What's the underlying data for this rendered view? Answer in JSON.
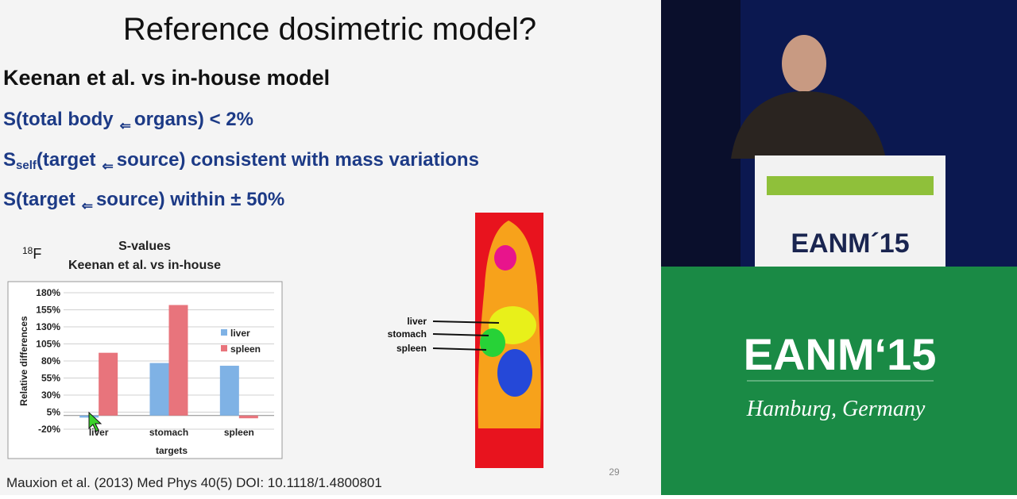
{
  "slide": {
    "title": "Reference dosimetric model?",
    "heading": "Keenan et al. vs in-house model",
    "bullets": [
      [
        "S(total body",
        "⇐",
        "organs) < 2%"
      ],
      [
        "S",
        "self",
        "(target",
        "⇐",
        "source) consistent with mass variations"
      ],
      [
        "S(target",
        "⇐",
        "source) within ± 50%"
      ]
    ],
    "isotope": [
      "18",
      "F"
    ],
    "image_labels": [
      "liver",
      "stomach",
      "spleen"
    ],
    "page_number": "29",
    "reference": "Mauxion et al. (2013) Med Phys 40(5) DOI: 10.1118/1.4800801"
  },
  "video": {
    "podium_text": "EANM´15",
    "banner_title": "EANM‘15",
    "banner_subtitle": "Hamburg, Germany"
  },
  "chart_data": {
    "type": "bar",
    "title": [
      "S-values",
      "Keenan et al. vs in-house"
    ],
    "x_label": "targets",
    "y_label": "Relative differences",
    "categories": [
      "liver",
      "stomach",
      "spleen"
    ],
    "series": [
      {
        "name": "liver",
        "color": "#7fb2e5",
        "values": [
          -3,
          77,
          73
        ]
      },
      {
        "name": "spleen",
        "color": "#e8747c",
        "values": [
          92,
          162,
          -4
        ]
      }
    ],
    "ylim": [
      -20,
      180
    ],
    "yticks": [
      {
        "value": -20,
        "label": "-20%"
      },
      {
        "value": 5,
        "label": "5%"
      },
      {
        "value": 30,
        "label": "30%"
      },
      {
        "value": 55,
        "label": "55%"
      },
      {
        "value": 80,
        "label": "80%"
      },
      {
        "value": 105,
        "label": "105%"
      },
      {
        "value": 130,
        "label": "130%"
      },
      {
        "value": 155,
        "label": "155%"
      },
      {
        "value": 180,
        "label": "180%"
      }
    ],
    "grid": true,
    "legend": "right"
  }
}
